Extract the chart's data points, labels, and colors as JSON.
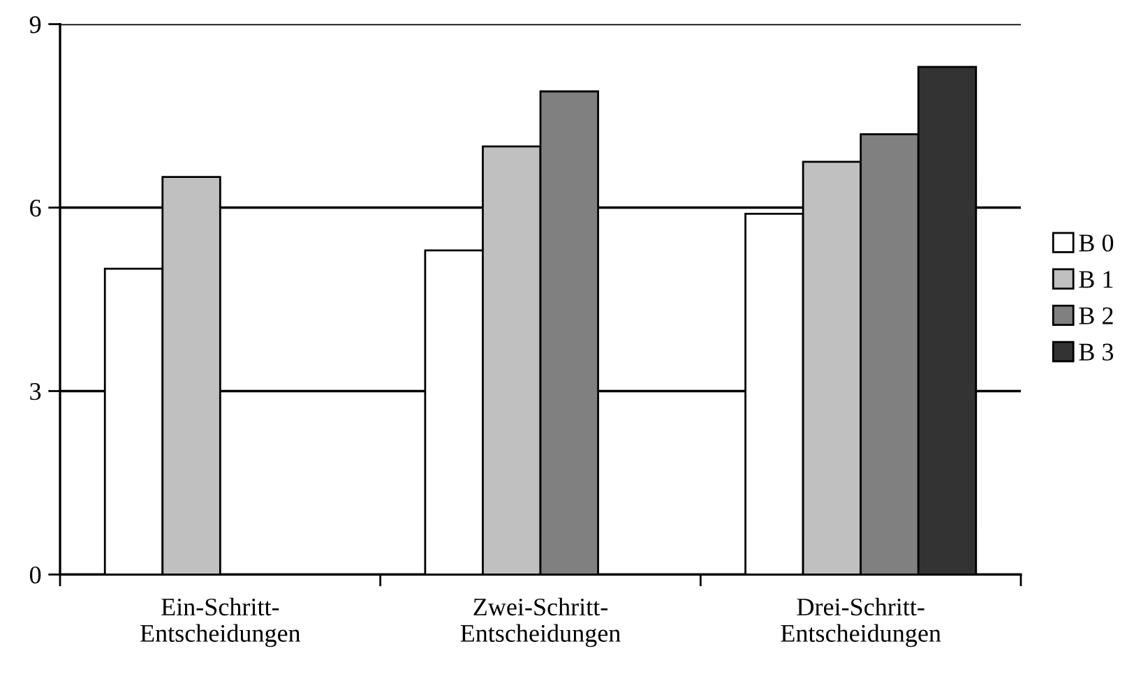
{
  "chart_data": {
    "type": "bar",
    "categories": [
      "Ein-Schritt-\nEntscheidungen",
      "Zwei-Schritt-\nEntscheidungen",
      "Drei-Schritt-\nEntscheidungen"
    ],
    "series": [
      {
        "name": "B 0",
        "color": "#ffffff",
        "values": [
          5.0,
          5.3,
          5.9
        ]
      },
      {
        "name": "B 1",
        "color": "#c0c0c0",
        "values": [
          6.5,
          7.0,
          6.75
        ]
      },
      {
        "name": "B 2",
        "color": "#808080",
        "values": [
          null,
          7.9,
          7.2
        ]
      },
      {
        "name": "B 3",
        "color": "#333333",
        "values": [
          null,
          null,
          8.3
        ]
      }
    ],
    "ylim": [
      0,
      9
    ],
    "yticks": [
      0,
      3,
      6,
      9
    ],
    "grid": "y",
    "legend": "right"
  }
}
